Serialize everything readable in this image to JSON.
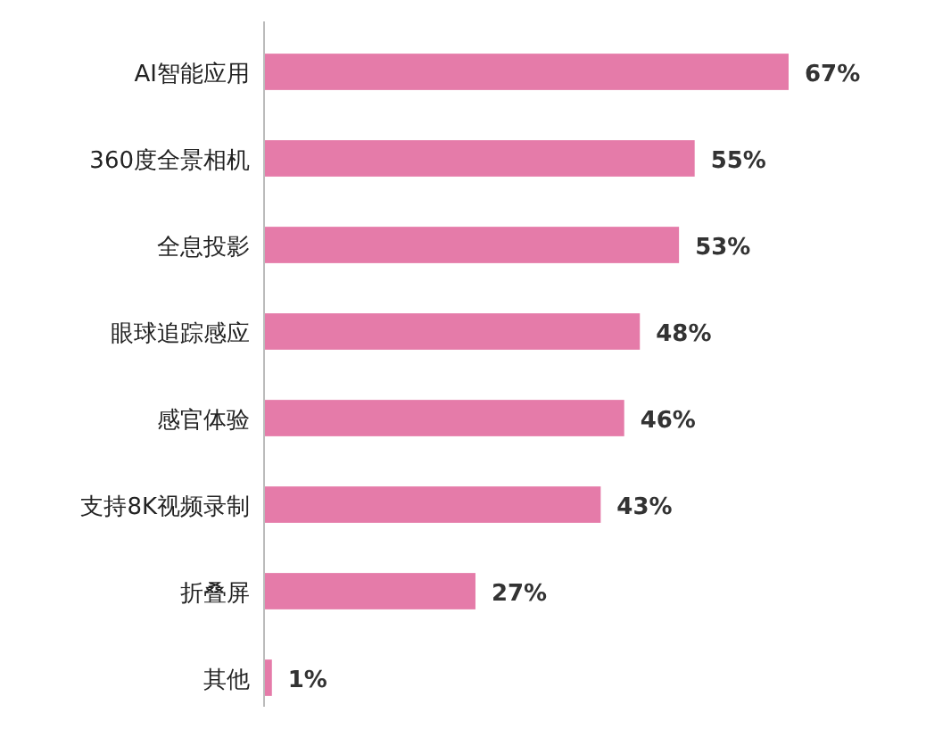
{
  "chart_data": {
    "type": "bar",
    "orientation": "horizontal",
    "categories": [
      "AI智能应用",
      "360度全景相机",
      "全息投影",
      "眼球追踪感应",
      "感官体验",
      "支持8K视频录制",
      "折叠屏",
      "其他"
    ],
    "values": [
      67,
      55,
      53,
      48,
      46,
      43,
      27,
      1
    ],
    "value_labels": [
      "67%",
      "55%",
      "53%",
      "48%",
      "46%",
      "43%",
      "27%",
      "1%"
    ],
    "color": "#e57ba9"
  }
}
